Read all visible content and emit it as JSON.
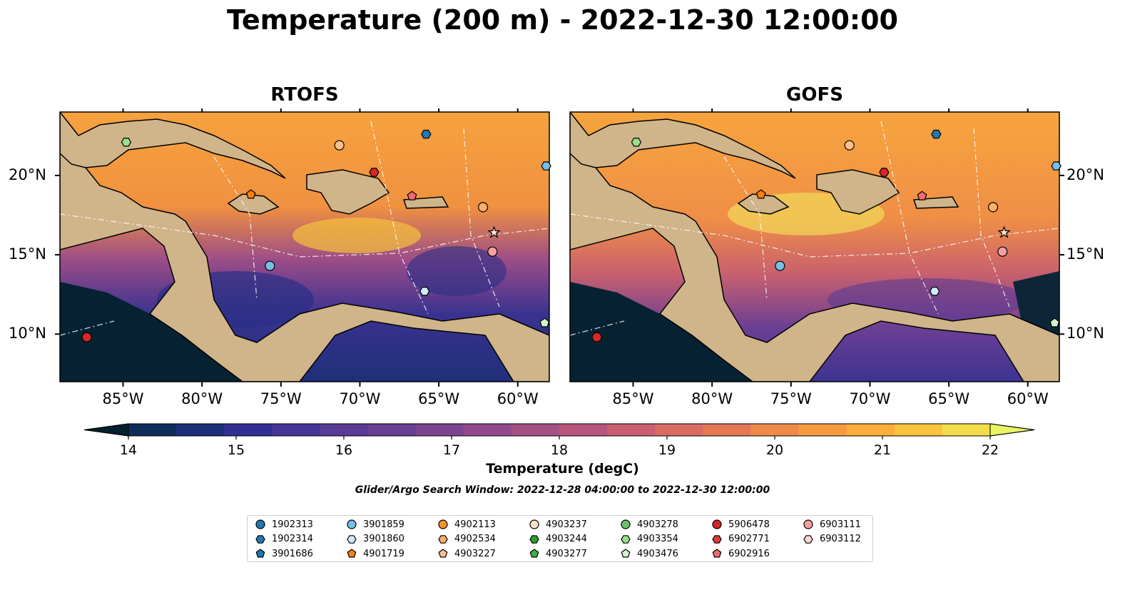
{
  "title": "Temperature (200 m) - 2022-12-30 12:00:00",
  "panels": [
    {
      "title": "RTOFS"
    },
    {
      "title": "GOFS"
    }
  ],
  "x_ticks": [
    "85°W",
    "80°W",
    "75°W",
    "70°W",
    "65°W",
    "60°W"
  ],
  "x_tick_values": [
    -85,
    -80,
    -75,
    -70,
    -65,
    -60
  ],
  "y_ticks": [
    "10°N",
    "15°N",
    "20°N"
  ],
  "y_tick_values": [
    10,
    15,
    20
  ],
  "extent": {
    "lon": [
      -89,
      -58
    ],
    "lat": [
      7,
      24
    ]
  },
  "colorbar": {
    "label": "Temperature (degC)",
    "ticks": [
      "14",
      "15",
      "16",
      "17",
      "18",
      "19",
      "20",
      "21",
      "22"
    ],
    "tick_values": [
      14,
      15,
      16,
      17,
      18,
      19,
      20,
      21,
      22
    ],
    "range": [
      14,
      22
    ],
    "extend": "both",
    "colormap": "thermal",
    "colors": [
      "#04202f",
      "#0e2c5a",
      "#1b2f7a",
      "#2f2f92",
      "#443596",
      "#573b96",
      "#693f94",
      "#7c4490",
      "#904a8b",
      "#a45085",
      "#b7567c",
      "#c95f70",
      "#d96b63",
      "#e57956",
      "#ef8a4a",
      "#f69b40",
      "#fbae3b",
      "#fbc43d",
      "#f4dc4b",
      "#e9f464"
    ]
  },
  "search_window": "Glider/Argo Search Window: 2022-12-28 04:00:00 to 2022-12-30 12:00:00",
  "floats": [
    {
      "id": "1902313",
      "color": "#1f77b4",
      "marker": "circle"
    },
    {
      "id": "1902314",
      "color": "#1f77b4",
      "marker": "hexagon"
    },
    {
      "id": "3901686",
      "color": "#1f77b4",
      "marker": "pentagon"
    },
    {
      "id": "3901859",
      "color": "#74c0e8",
      "marker": "circle"
    },
    {
      "id": "3901860",
      "color": "#cfeafb",
      "marker": "hexagon"
    },
    {
      "id": "4901719",
      "color": "#ff7f0e",
      "marker": "pentagon"
    },
    {
      "id": "4902113",
      "color": "#f5902e",
      "marker": "circle"
    },
    {
      "id": "4902534",
      "color": "#fdae6b",
      "marker": "hexagon"
    },
    {
      "id": "4903227",
      "color": "#fdc08a",
      "marker": "pentagon"
    },
    {
      "id": "4903237",
      "color": "#fde3c8",
      "marker": "circle"
    },
    {
      "id": "4903244",
      "color": "#2ca02c",
      "marker": "hexagon"
    },
    {
      "id": "4903277",
      "color": "#3fae3f",
      "marker": "pentagon"
    },
    {
      "id": "4903278",
      "color": "#6cc26c",
      "marker": "circle"
    },
    {
      "id": "4903354",
      "color": "#98df8a",
      "marker": "hexagon"
    },
    {
      "id": "4903476",
      "color": "#d2f5cc",
      "marker": "pentagon"
    },
    {
      "id": "5906478",
      "color": "#d62728",
      "marker": "circle"
    },
    {
      "id": "6902771",
      "color": "#e0383a",
      "marker": "hexagon"
    },
    {
      "id": "6902916",
      "color": "#f06a70",
      "marker": "pentagon"
    },
    {
      "id": "6903111",
      "color": "#f4a0a0",
      "marker": "circle"
    },
    {
      "id": "6903112",
      "color": "#fcd4d4",
      "marker": "hexagon"
    }
  ],
  "float_positions": [
    {
      "lon": -87.3,
      "lat": 9.8,
      "color": "#d62728",
      "marker": "circle"
    },
    {
      "lon": -84.8,
      "lat": 22.1,
      "color": "#98df8a",
      "marker": "hexagon"
    },
    {
      "lon": -75.7,
      "lat": 14.3,
      "color": "#74c0e8",
      "marker": "circle"
    },
    {
      "lon": -76.9,
      "lat": 18.8,
      "color": "#ff7f0e",
      "marker": "pentagon"
    },
    {
      "lon": -71.3,
      "lat": 21.9,
      "color": "#fdc08a",
      "marker": "circle"
    },
    {
      "lon": -69.1,
      "lat": 20.2,
      "color": "#d62728",
      "marker": "hexagon"
    },
    {
      "lon": -65.8,
      "lat": 22.6,
      "color": "#1f77b4",
      "marker": "hexagon"
    },
    {
      "lon": -66.7,
      "lat": 18.7,
      "color": "#f06a70",
      "marker": "pentagon"
    },
    {
      "lon": -62.2,
      "lat": 18.0,
      "color": "#fdae6b",
      "marker": "circle"
    },
    {
      "lon": -61.5,
      "lat": 16.4,
      "color": "#fde3c8",
      "marker": "star"
    },
    {
      "lon": -61.6,
      "lat": 15.2,
      "color": "#f4a0a0",
      "marker": "circle"
    },
    {
      "lon": -65.9,
      "lat": 12.7,
      "color": "#cfeafb",
      "marker": "hexagon"
    },
    {
      "lon": -58.3,
      "lat": 10.7,
      "color": "#d2f5cc",
      "marker": "pentagon"
    },
    {
      "lon": -58.2,
      "lat": 20.6,
      "color": "#74c0e8",
      "marker": "hexagon"
    }
  ]
}
